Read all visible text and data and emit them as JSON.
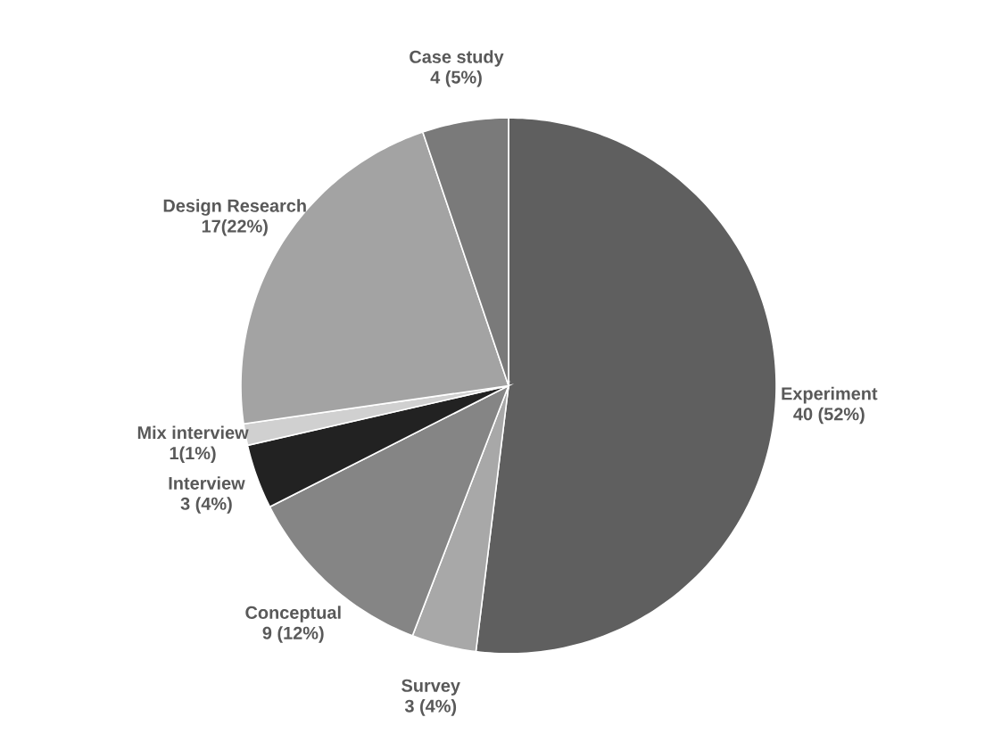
{
  "chart_data": {
    "type": "pie",
    "categories": [
      "Experiment",
      "Survey",
      "Conceptual",
      "Interview",
      "Mix interview",
      "Design Research",
      "Case study"
    ],
    "values": [
      40,
      3,
      9,
      3,
      1,
      17,
      4
    ],
    "value_labels": [
      "40 (52%)",
      "3 (4%)",
      "9 (12%)",
      "3 (4%)",
      "1(1%)",
      "17(22%)",
      "4 (5%)"
    ],
    "colors": [
      "#5f5f5f",
      "#a8a8a8",
      "#858585",
      "#222222",
      "#d0d0d0",
      "#a3a3a3",
      "#7a7a7a"
    ]
  }
}
